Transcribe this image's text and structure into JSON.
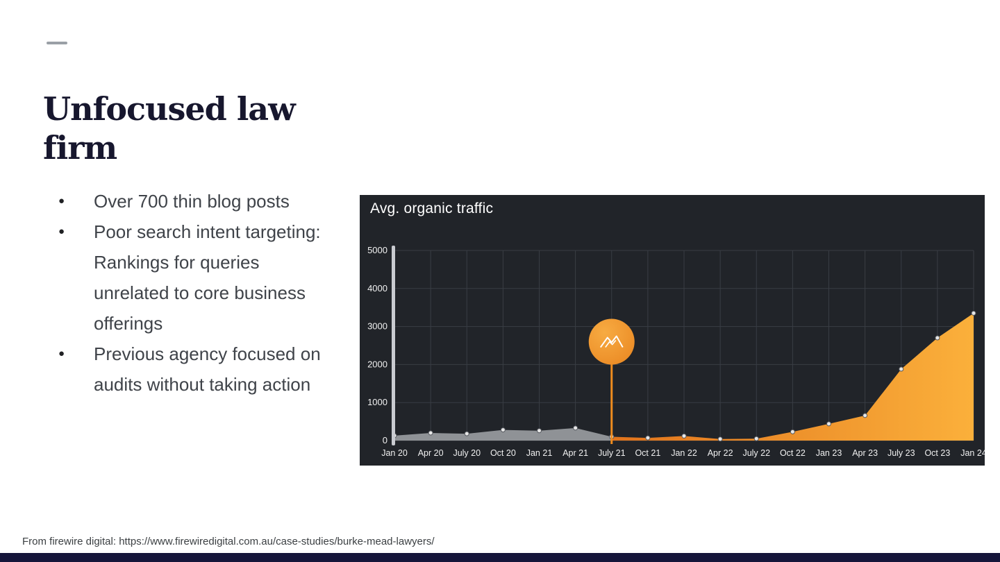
{
  "slide": {
    "title": "Unfocused law firm",
    "bullets": [
      "Over 700 thin blog posts",
      "Poor search intent targeting: Rankings for queries unrelated to core business offerings",
      "Previous agency focused on audits without taking action"
    ],
    "source": "From firewire digital: https://www.firewiredigital.com.au/case-studies/burke-mead-lawyers/"
  },
  "colors": {
    "slide_background": "#ffffff",
    "title_text": "#17172e",
    "body_text": "#3f4349",
    "chart_panel_background": "#212429",
    "grid_line": "#393d44",
    "gray_series": "#8f9296",
    "orange_accent": "#ef8c1f",
    "orange_gradient_start": "#e0731c",
    "orange_gradient_end": "#fbb03b",
    "bottom_bar": "#15153a"
  },
  "chart_data": {
    "type": "area",
    "title": "Avg. organic traffic",
    "categories": [
      "Jan 20",
      "Apr 20",
      "July 20",
      "Oct 20",
      "Jan 21",
      "Apr 21",
      "July 21",
      "Oct 21",
      "Jan 22",
      "Apr 22",
      "July 22",
      "Oct 22",
      "Jan 23",
      "Apr 23",
      "July 23",
      "Oct 23",
      "Jan 24"
    ],
    "series": [
      {
        "name": "previous-agency-traffic",
        "color": "#8f9296",
        "values": [
          130,
          200,
          180,
          280,
          260,
          330,
          100,
          null,
          null,
          null,
          null,
          null,
          null,
          null,
          null,
          null,
          null
        ]
      },
      {
        "name": "firewire-digital-traffic",
        "gradient": [
          "#e0731c",
          "#fbb03b"
        ],
        "values": [
          null,
          null,
          null,
          null,
          null,
          null,
          100,
          70,
          120,
          40,
          50,
          230,
          440,
          660,
          1880,
          2700,
          3350
        ]
      }
    ],
    "ylim": [
      0,
      5000
    ],
    "yticks": [
      0,
      1000,
      2000,
      3000,
      4000,
      5000
    ],
    "grid": true,
    "legend": "none",
    "annotation": {
      "category": "July 21",
      "value": 2600,
      "label": "firewire-digital-takeover-marker"
    }
  }
}
